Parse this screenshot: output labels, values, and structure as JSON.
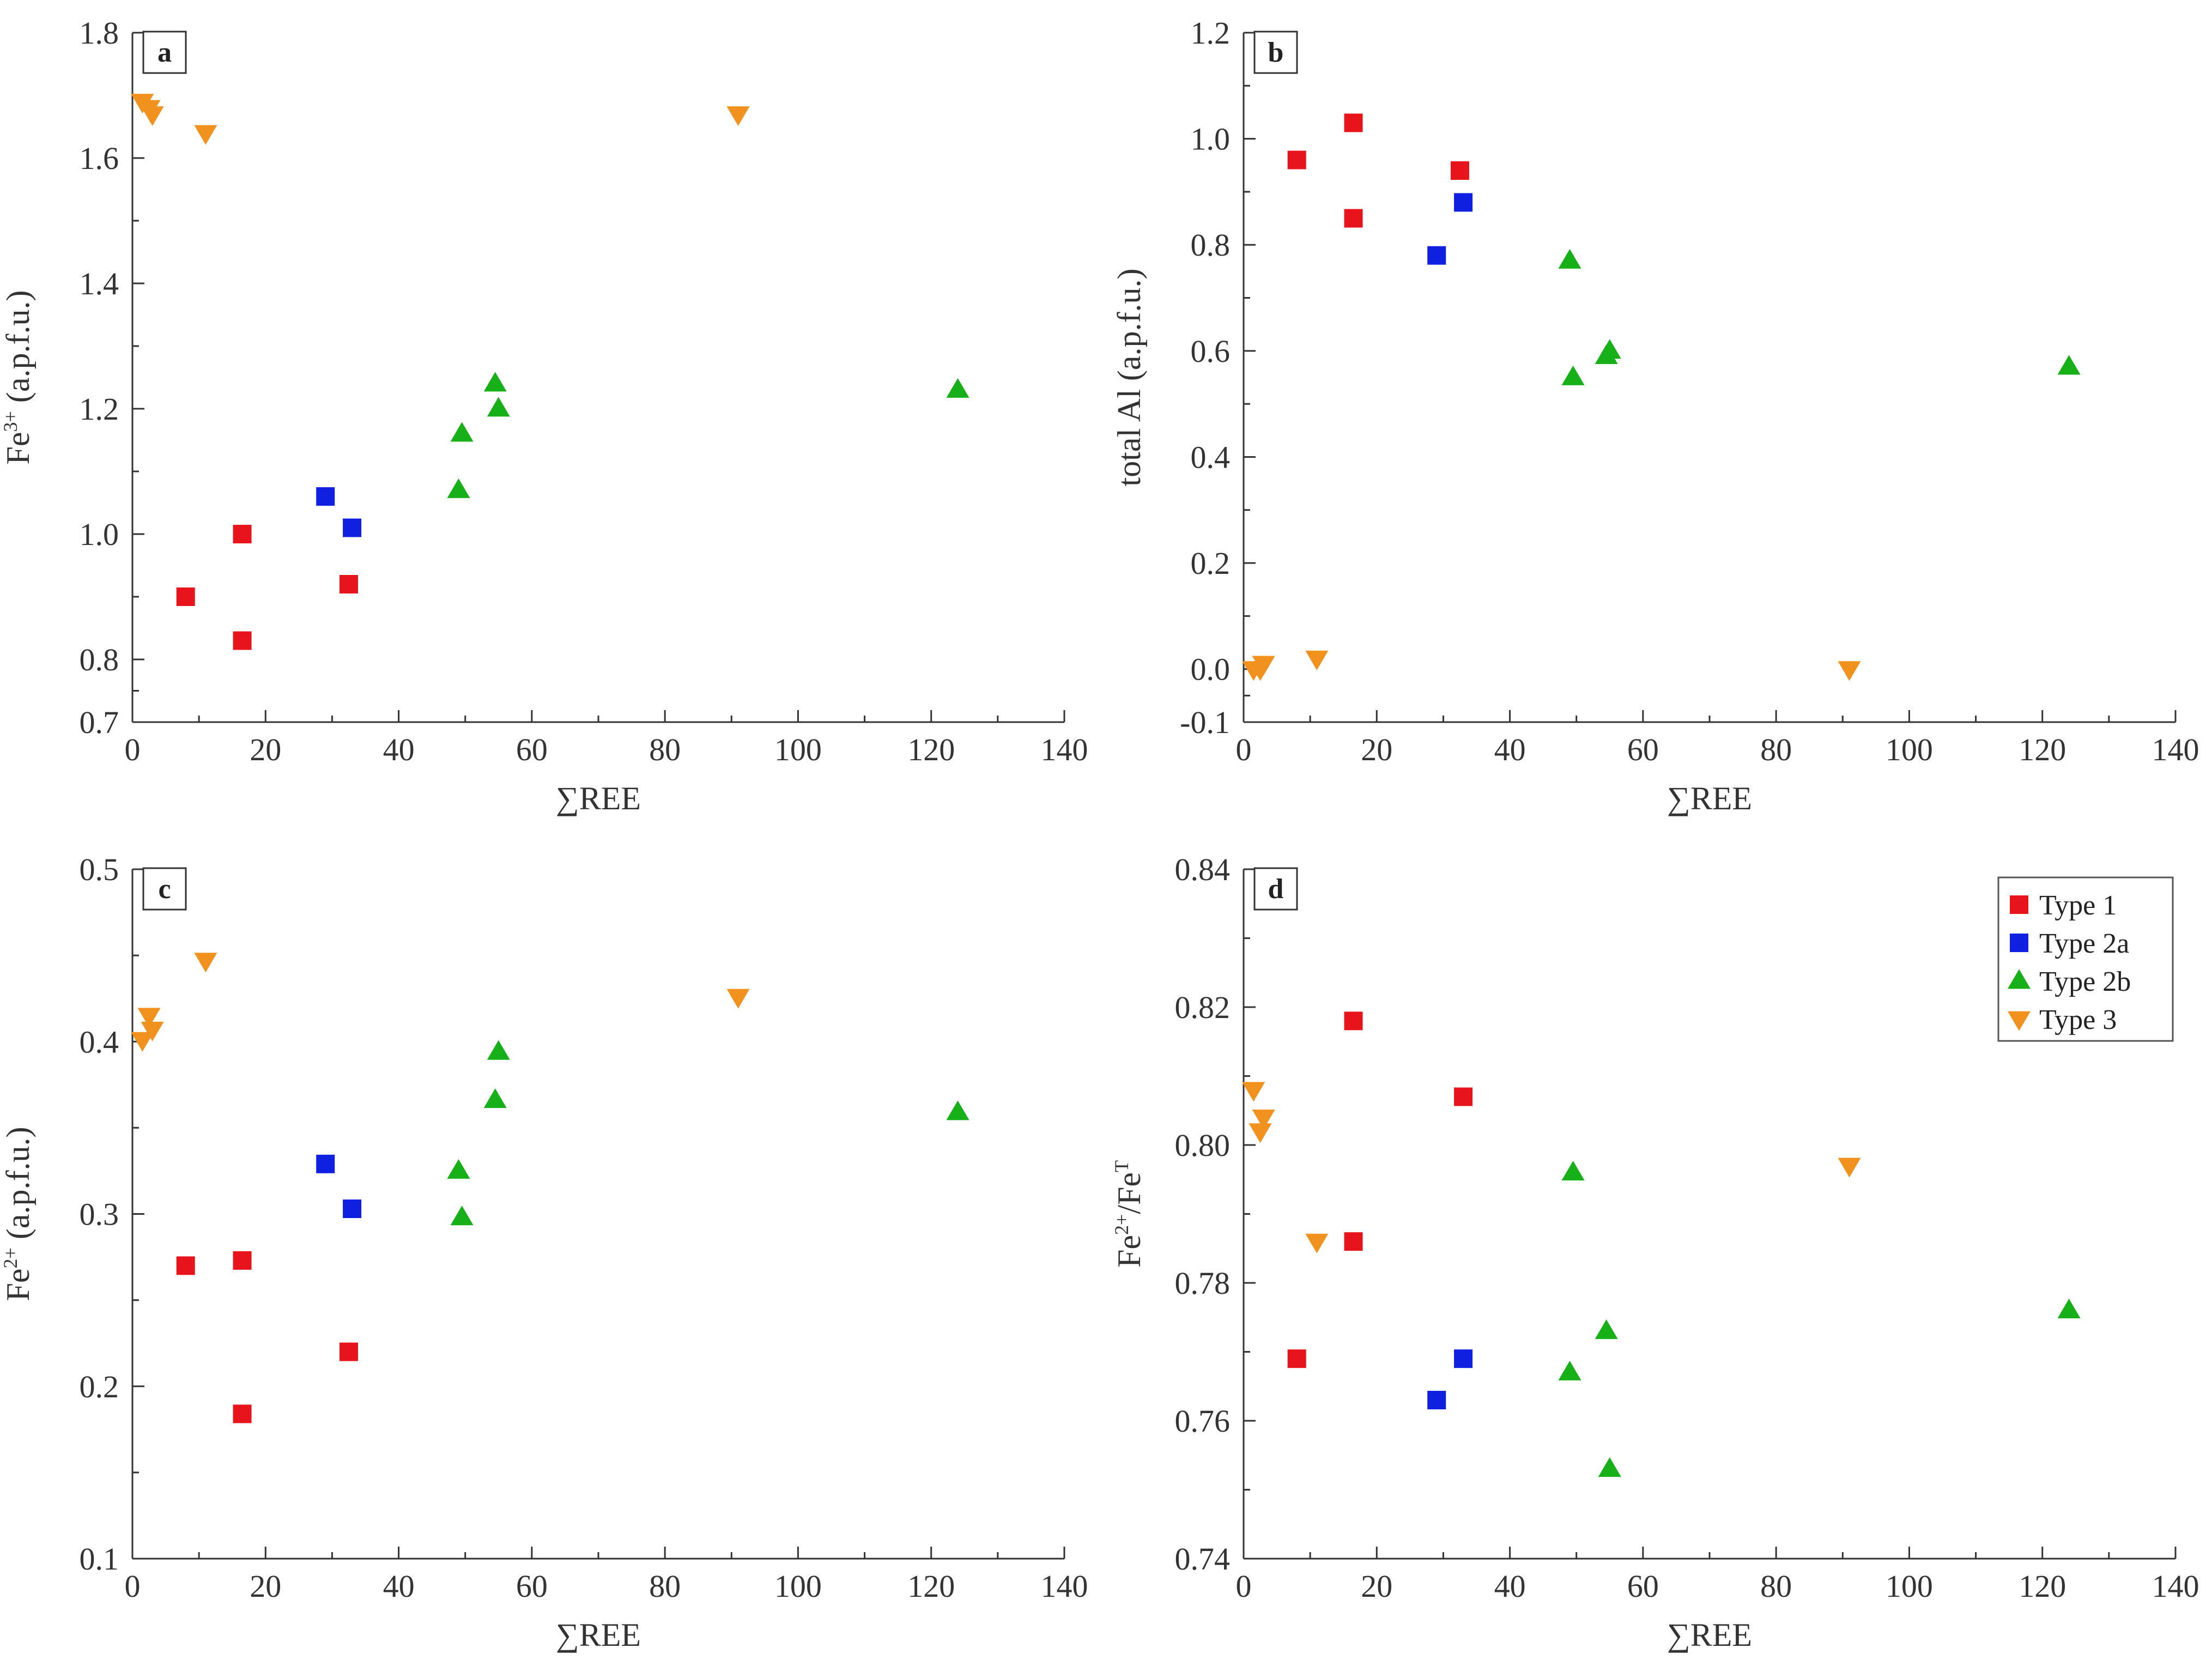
{
  "colors": {
    "type1": "#e8141c",
    "type2a": "#1020e0",
    "type2b": "#18b018",
    "type3": "#f2921e"
  },
  "legend": [
    {
      "key": "type1",
      "label": "Type 1",
      "marker": "square"
    },
    {
      "key": "type2a",
      "label": "Type 2a",
      "marker": "square"
    },
    {
      "key": "type2b",
      "label": "Type 2b",
      "marker": "triangle-up"
    },
    {
      "key": "type3",
      "label": "Type 3",
      "marker": "triangle-down"
    }
  ],
  "chart_data": [
    {
      "type": "scatter",
      "panel": "a",
      "xlabel": "∑REE",
      "ylabel": "Fe",
      "ylabel_sup": "3+",
      "ylabel_suffix": " (a.p.f.u.)",
      "xlim": [
        0,
        140
      ],
      "ylim": [
        0.7,
        1.8
      ],
      "xticks": [
        0,
        20,
        40,
        60,
        80,
        100,
        120,
        140
      ],
      "xtick_labels": [
        "0",
        "20",
        "40",
        "60",
        "80",
        "100",
        "120",
        "140"
      ],
      "yticks": [
        0.7,
        0.8,
        1.0,
        1.2,
        1.4,
        1.6,
        1.8
      ],
      "ytick_labels": [
        "0.7",
        "0.8",
        "1.0",
        "1.2",
        "1.4",
        "1.6",
        "1.8"
      ],
      "series": [
        {
          "name": "Type 1",
          "key": "type1",
          "marker": "square",
          "x": [
            8,
            16.5,
            16.5,
            32.5
          ],
          "y": [
            0.9,
            1.0,
            0.83,
            0.92
          ]
        },
        {
          "name": "Type 2a",
          "key": "type2a",
          "marker": "square",
          "x": [
            29,
            33
          ],
          "y": [
            1.06,
            1.01
          ]
        },
        {
          "name": "Type 2b",
          "key": "type2b",
          "marker": "triangle-up",
          "x": [
            49,
            49.5,
            54.5,
            55,
            124
          ],
          "y": [
            1.07,
            1.16,
            1.24,
            1.2,
            1.23
          ]
        },
        {
          "name": "Type 3",
          "key": "type3",
          "marker": "triangle-down",
          "x": [
            1.5,
            2.5,
            3,
            11,
            91
          ],
          "y": [
            1.69,
            1.68,
            1.67,
            1.64,
            1.67
          ]
        }
      ]
    },
    {
      "type": "scatter",
      "panel": "b",
      "xlabel": "∑REE",
      "ylabel": "total Al (a.p.f.u.)",
      "ylabel_sup": "",
      "ylabel_suffix": "",
      "xlim": [
        0,
        140
      ],
      "ylim": [
        -0.1,
        1.2
      ],
      "xticks": [
        0,
        20,
        40,
        60,
        80,
        100,
        120,
        140
      ],
      "xtick_labels": [
        "0",
        "20",
        "40",
        "60",
        "80",
        "100",
        "120",
        "140"
      ],
      "yticks": [
        -0.1,
        0.0,
        0.2,
        0.4,
        0.6,
        0.8,
        1.0,
        1.2
      ],
      "ytick_labels": [
        "-0.1",
        "0.0",
        "0.2",
        "0.4",
        "0.6",
        "0.8",
        "1.0",
        "1.2"
      ],
      "series": [
        {
          "name": "Type 1",
          "key": "type1",
          "marker": "square",
          "x": [
            8,
            16.5,
            16.5,
            32.5
          ],
          "y": [
            0.96,
            1.03,
            0.85,
            0.94
          ]
        },
        {
          "name": "Type 2a",
          "key": "type2a",
          "marker": "square",
          "x": [
            29,
            33
          ],
          "y": [
            0.78,
            0.88
          ]
        },
        {
          "name": "Type 2b",
          "key": "type2b",
          "marker": "triangle-up",
          "x": [
            49,
            49.5,
            54.5,
            55,
            124
          ],
          "y": [
            0.77,
            0.55,
            0.59,
            0.6,
            0.57
          ]
        },
        {
          "name": "Type 3",
          "key": "type3",
          "marker": "triangle-down",
          "x": [
            1.5,
            2.5,
            3,
            11,
            91
          ],
          "y": [
            0.0,
            0.0,
            0.01,
            0.02,
            0.0
          ]
        }
      ]
    },
    {
      "type": "scatter",
      "panel": "c",
      "xlabel": "∑REE",
      "ylabel": "Fe",
      "ylabel_sup": "2+",
      "ylabel_suffix": " (a.p.f.u.)",
      "xlim": [
        0,
        140
      ],
      "ylim": [
        0.1,
        0.5
      ],
      "xticks": [
        0,
        20,
        40,
        60,
        80,
        100,
        120,
        140
      ],
      "xtick_labels": [
        "0",
        "20",
        "40",
        "60",
        "80",
        "100",
        "120",
        "140"
      ],
      "yticks": [
        0.1,
        0.2,
        0.3,
        0.4,
        0.5
      ],
      "ytick_labels": [
        "0.1",
        "0.2",
        "0.3",
        "0.4",
        "0.5"
      ],
      "series": [
        {
          "name": "Type 1",
          "key": "type1",
          "marker": "square",
          "x": [
            8,
            16.5,
            16.5,
            32.5
          ],
          "y": [
            0.27,
            0.273,
            0.184,
            0.22
          ]
        },
        {
          "name": "Type 2a",
          "key": "type2a",
          "marker": "square",
          "x": [
            29,
            33
          ],
          "y": [
            0.329,
            0.303
          ]
        },
        {
          "name": "Type 2b",
          "key": "type2b",
          "marker": "triangle-up",
          "x": [
            49,
            49.5,
            54.5,
            55,
            124
          ],
          "y": [
            0.325,
            0.298,
            0.366,
            0.394,
            0.359
          ]
        },
        {
          "name": "Type 3",
          "key": "type3",
          "marker": "triangle-down",
          "x": [
            1.5,
            2.5,
            3,
            11,
            91
          ],
          "y": [
            0.401,
            0.415,
            0.407,
            0.447,
            0.426
          ]
        }
      ]
    },
    {
      "type": "scatter",
      "panel": "d",
      "xlabel": "∑REE",
      "ylabel": "Fe",
      "ylabel_sup": "2+",
      "ylabel_suffix": "/Fe",
      "ylabel_sup2": "T",
      "xlim": [
        0,
        140
      ],
      "ylim": [
        0.74,
        0.84
      ],
      "xticks": [
        0,
        20,
        40,
        60,
        80,
        100,
        120,
        140
      ],
      "xtick_labels": [
        "0",
        "20",
        "40",
        "60",
        "80",
        "100",
        "120",
        "140"
      ],
      "yticks": [
        0.74,
        0.76,
        0.78,
        0.8,
        0.82,
        0.84
      ],
      "ytick_labels": [
        "0.74",
        "0.76",
        "0.78",
        "0.80",
        "0.82",
        "0.84"
      ],
      "legend_position": "top-right",
      "series": [
        {
          "name": "Type 1",
          "key": "type1",
          "marker": "square",
          "x": [
            8,
            16.5,
            16.5,
            33
          ],
          "y": [
            0.769,
            0.818,
            0.786,
            0.807
          ]
        },
        {
          "name": "Type 2a",
          "key": "type2a",
          "marker": "square",
          "x": [
            29,
            33
          ],
          "y": [
            0.763,
            0.769
          ]
        },
        {
          "name": "Type 2b",
          "key": "type2b",
          "marker": "triangle-up",
          "x": [
            49,
            49.5,
            54.5,
            55,
            124
          ],
          "y": [
            0.767,
            0.796,
            0.773,
            0.753,
            0.776
          ]
        },
        {
          "name": "Type 3",
          "key": "type3",
          "marker": "triangle-down",
          "x": [
            1.5,
            2.5,
            3,
            11,
            91
          ],
          "y": [
            0.808,
            0.802,
            0.804,
            0.786,
            0.797
          ]
        }
      ]
    }
  ]
}
